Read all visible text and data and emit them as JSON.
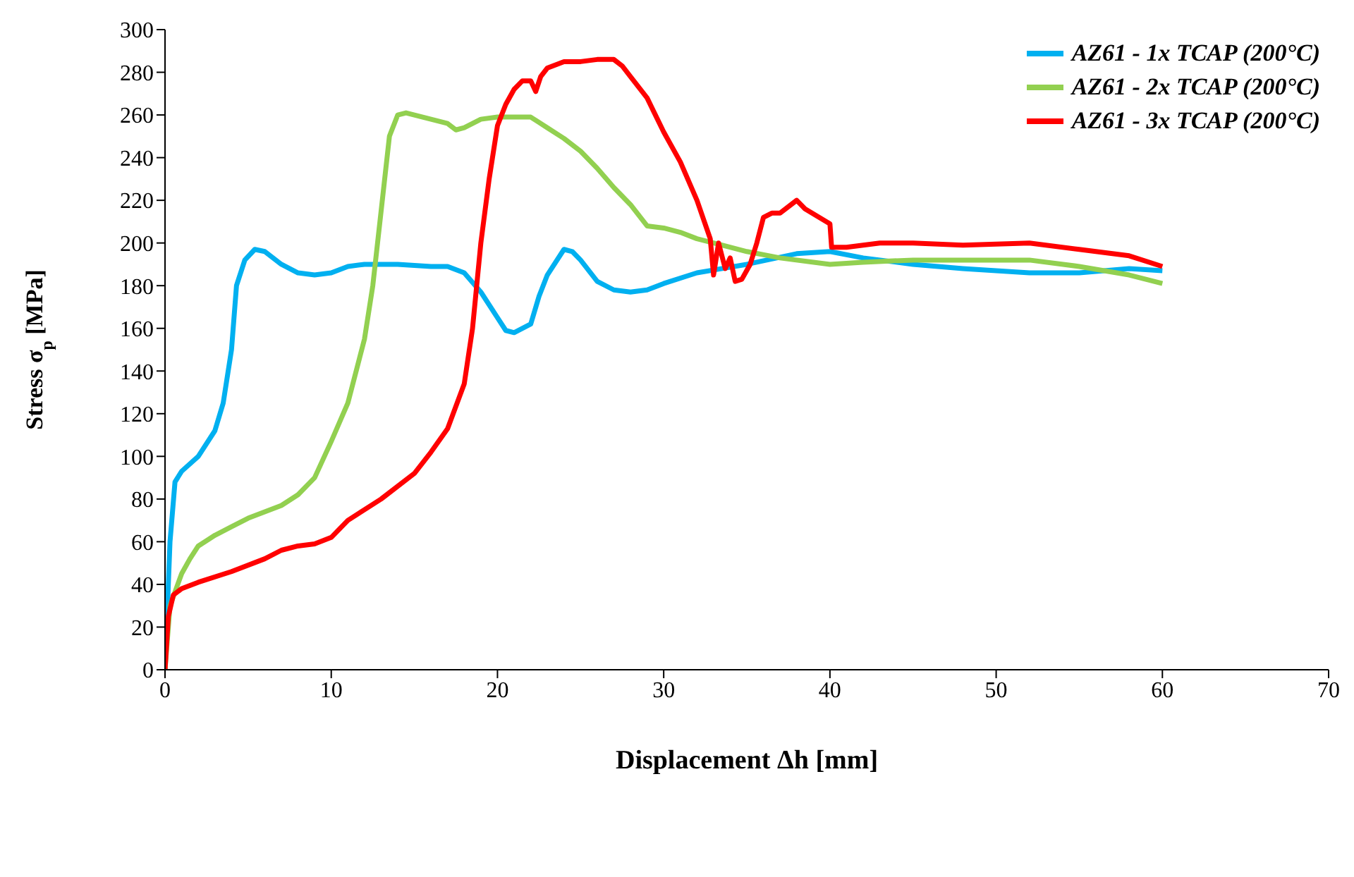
{
  "chart_data": {
    "type": "line",
    "xlabel": "Displacement Δh [mm]",
    "ylabel": "Stress σ$_{p}$ [MPa]",
    "xlim": [
      0,
      70
    ],
    "xticks": [
      0,
      10,
      20,
      30,
      40,
      50,
      60,
      70
    ],
    "ylim": [
      0,
      300
    ],
    "yticks": [
      0,
      20,
      40,
      60,
      80,
      100,
      120,
      140,
      160,
      180,
      200,
      220,
      240,
      260,
      280,
      300
    ],
    "grid": false,
    "legend": "top right",
    "marker": "none",
    "line_style": "solid",
    "series": [
      {
        "name": "AZ61 - 1x TCAP (200°C)",
        "color": "#00b0f0",
        "x": [
          0,
          0.3,
          0.6,
          1,
          2,
          3,
          3.5,
          4,
          4.3,
          4.8,
          5.4,
          6,
          7,
          8,
          9,
          10,
          11,
          12,
          14,
          16,
          17,
          18,
          19,
          20,
          20.5,
          21,
          22,
          22.5,
          23,
          24,
          24.5,
          25,
          26,
          27,
          28,
          29,
          30,
          32,
          35,
          38,
          40,
          42,
          45,
          48,
          50,
          52,
          55,
          58,
          60
        ],
        "values": [
          0,
          60,
          88,
          93,
          100,
          112,
          125,
          150,
          180,
          192,
          197,
          196,
          190,
          186,
          185,
          186,
          189,
          190,
          190,
          189,
          189,
          186,
          177,
          165,
          159,
          158,
          162,
          175,
          185,
          197,
          196,
          192,
          182,
          178,
          177,
          178,
          181,
          186,
          190,
          195,
          196,
          193,
          190,
          188,
          187,
          186,
          186,
          188,
          187
        ]
      },
      {
        "name": "AZ61 - 2x TCAP (200°C)",
        "color": "#92d050",
        "x": [
          0,
          0.3,
          1,
          1.5,
          2,
          3,
          4,
          5,
          6,
          7,
          8,
          9,
          10,
          11,
          12,
          12.5,
          13,
          13.5,
          14,
          14.5,
          15,
          17,
          17.5,
          18,
          19,
          20,
          22,
          23,
          24,
          25,
          26,
          27,
          28,
          29,
          30,
          31,
          32,
          33,
          35,
          37,
          40,
          42,
          45,
          50,
          52,
          55,
          58,
          60
        ],
        "values": [
          0,
          30,
          45,
          52,
          58,
          63,
          67,
          71,
          74,
          77,
          82,
          90,
          107,
          125,
          155,
          180,
          215,
          250,
          260,
          261,
          260,
          256,
          253,
          254,
          258,
          259,
          259,
          254,
          249,
          243,
          235,
          226,
          218,
          208,
          207,
          205,
          202,
          200,
          196,
          193,
          190,
          191,
          192,
          192,
          192,
          189,
          185,
          181
        ]
      },
      {
        "name": "AZ61 - 3x TCAP (200°C)",
        "color": "#ff0000",
        "x": [
          0,
          0.2,
          0.5,
          1,
          2,
          4,
          6,
          7,
          8,
          9,
          10,
          11,
          13,
          15,
          16,
          17,
          18,
          18.5,
          19,
          19.5,
          20,
          20.5,
          21,
          21.5,
          22,
          22.3,
          22.6,
          23,
          24,
          25,
          26,
          27,
          27.5,
          28,
          29,
          30,
          31,
          32,
          32.8,
          33,
          33.3,
          33.7,
          34,
          34.3,
          34.7,
          35.2,
          35.6,
          36,
          36.5,
          37,
          38,
          38.5,
          40,
          40.1,
          41,
          43,
          45,
          48,
          52,
          55,
          58,
          60
        ],
        "values": [
          0,
          25,
          35,
          38,
          41,
          46,
          52,
          56,
          58,
          59,
          62,
          70,
          80,
          92,
          102,
          113,
          134,
          160,
          200,
          230,
          255,
          265,
          272,
          276,
          276,
          271,
          278,
          282,
          285,
          285,
          286,
          286,
          283,
          278,
          268,
          252,
          238,
          220,
          202,
          185,
          200,
          188,
          193,
          182,
          183,
          190,
          200,
          212,
          214,
          214,
          220,
          216,
          209,
          198,
          198,
          200,
          200,
          199,
          200,
          197,
          194,
          189
        ]
      }
    ]
  }
}
